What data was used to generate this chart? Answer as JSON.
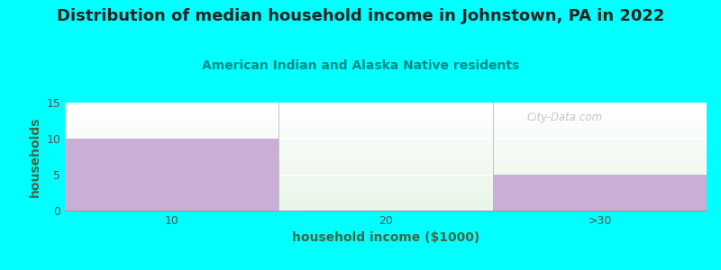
{
  "title": "Distribution of median household income in Johnstown, PA in 2022",
  "subtitle": "American Indian and Alaska Native residents",
  "xlabel": "household income ($1000)",
  "ylabel": "households",
  "categories": [
    "10",
    "20",
    ">30"
  ],
  "values": [
    10,
    0,
    5
  ],
  "bar_color": "#c9aed6",
  "ylim": [
    0,
    15
  ],
  "yticks": [
    0,
    5,
    10,
    15
  ],
  "background_color": "#00ffff",
  "plot_bg_color_top": "#e8f5ea",
  "plot_bg_color_bottom": "#f8fff8",
  "title_fontsize": 13,
  "subtitle_fontsize": 10,
  "subtitle_color": "#008888",
  "axis_label_fontsize": 10,
  "tick_label_fontsize": 9,
  "watermark": "City-Data.com",
  "bar_edges": [
    0,
    1,
    2,
    3
  ],
  "xlabel_color": "#447744",
  "ylabel_color": "#447744"
}
